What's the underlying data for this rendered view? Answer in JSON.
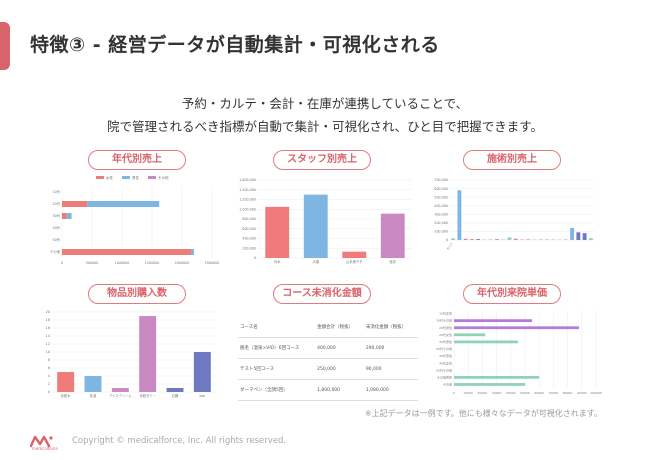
{
  "header": {
    "title": "特徴③ - 経営データが自動集計・可視化される"
  },
  "lead": {
    "line1": "予約・カルテ・会計・在庫が連携していることで、",
    "line2": "院で管理されるべき指標が自動で集計・可視化され、ひと目で把握できます。"
  },
  "colors": {
    "accent": "#d9636a",
    "pink": "#ef7b7b",
    "blue": "#7eb6e3",
    "purple": "#c98ac4",
    "indigo": "#6e79c2",
    "green": "#8fd3b6",
    "violet": "#b37cd6"
  },
  "panels": {
    "age_sales": {
      "label": "年代別売上"
    },
    "staff_sales": {
      "label": "スタッフ別売上"
    },
    "treatment_sales": {
      "label": "施術別売上"
    },
    "product_purchases": {
      "label": "物品別購入数"
    },
    "course_unconsumed": {
      "label": "コース未消化金額"
    },
    "age_unit_price": {
      "label": "年代別来院単価"
    }
  },
  "chart_data": [
    {
      "id": "age_sales",
      "type": "bar",
      "orientation": "horizontal",
      "stacked": true,
      "legend": [
        "女性",
        "男性",
        "その他"
      ],
      "legend_position": "top",
      "categories": [
        "10代",
        "20代",
        "30代",
        "40代",
        "50代",
        "その他"
      ],
      "series": [
        {
          "name": "女性",
          "values": [
            0,
            420000,
            80000,
            0,
            0,
            2150000
          ]
        },
        {
          "name": "男性",
          "values": [
            0,
            1200000,
            80000,
            0,
            0,
            50000
          ]
        },
        {
          "name": "その他",
          "values": [
            0,
            0,
            0,
            0,
            0,
            0
          ]
        }
      ],
      "x_ticks": [
        "0",
        "500000",
        "1000000",
        "1500000",
        "2000000",
        "2500000"
      ],
      "xlim": [
        0,
        2500000
      ],
      "grid": true
    },
    {
      "id": "staff_sales",
      "type": "bar",
      "categories": [
        "青木",
        "大橋",
        "山本美千子",
        "宮本"
      ],
      "values": [
        1050000,
        1300000,
        130000,
        910000
      ],
      "y_ticks": [
        "0",
        "200,000",
        "400,000",
        "600,000",
        "800,000",
        "1,000,000",
        "1,200,000",
        "1,400,000",
        "1,600,000"
      ],
      "ylim": [
        0,
        1600000
      ],
      "grid": true
    },
    {
      "id": "treatment_sales",
      "type": "bar",
      "categories": [
        "カット",
        "",
        "",
        "",
        "",
        "",
        "",
        "",
        "",
        "",
        "",
        "",
        "",
        "",
        "",
        "",
        "",
        "",
        "",
        "",
        "",
        "",
        ""
      ],
      "values": [
        20000,
        580000,
        15000,
        10000,
        10000,
        5000,
        5000,
        10000,
        5000,
        30000,
        15000,
        5000,
        5000,
        5000,
        5000,
        5000,
        5000,
        5000,
        5000,
        140000,
        90000,
        80000,
        20000
      ],
      "colors": [
        "#8fd3b6",
        "#7eb6e3",
        "#c98ac4",
        "#ef7b7b",
        "#6e79c2",
        "#8fd3b6",
        "#c98ac4",
        "#ef7b7b",
        "#7eb6e3",
        "#8fd3b6",
        "#c98ac4",
        "#ef7b7b",
        "#6e79c2",
        "#8fd3b6",
        "#c98ac4",
        "#ef7b7b",
        "#7eb6e3",
        "#8fd3b6",
        "#c98ac4",
        "#7eb6e3",
        "#6e79c2",
        "#6e79c2",
        "#8fd3b6"
      ],
      "y_ticks": [
        "0",
        "100,000",
        "200,000",
        "300,000",
        "400,000",
        "500,000",
        "600,000",
        "700,000"
      ],
      "ylim": [
        0,
        700000
      ],
      "grid": true
    },
    {
      "id": "product_purchases",
      "type": "bar",
      "categories": [
        "化粧水",
        "乳液",
        "アイスクリーム",
        "化粧ゼリー",
        "石鹸",
        "bwi"
      ],
      "values": [
        5,
        4,
        1,
        19,
        1,
        10
      ],
      "colors": [
        "#ef7b7b",
        "#7eb6e3",
        "#c98ac4",
        "#c98ac4",
        "#6e79c2",
        "#6e79c2"
      ],
      "y_ticks": [
        "0",
        "2",
        "4",
        "6",
        "8",
        "10",
        "12",
        "14",
        "16",
        "18",
        "20"
      ],
      "ylim": [
        0,
        20
      ],
      "grid": true
    },
    {
      "id": "course_unconsumed",
      "type": "table",
      "columns": [
        "コース名",
        "金額合計（税抜）",
        "未消化金額（税抜）"
      ],
      "rows": [
        [
          "脱毛（温泉×VIO）6回コース",
          "400,000",
          "290,000"
        ],
        [
          "テスト5回コース",
          "250,000",
          "90,000"
        ],
        [
          "ダーマペン（全顔5回）",
          "1,800,000",
          "1,080,000"
        ]
      ]
    },
    {
      "id": "age_unit_price",
      "type": "bar",
      "orientation": "horizontal",
      "categories": [
        "10代女性",
        "10代その他",
        "20代男性",
        "20代女性",
        "30代男性",
        "30代その他",
        "40代男性",
        "40代女性",
        "50代その他",
        "その他男性",
        "その他"
      ],
      "values": [
        0,
        55000,
        88000,
        22000,
        45000,
        0,
        0,
        0,
        0,
        60000,
        50000
      ],
      "colors": [
        "#b37cd6",
        "#b37cd6",
        "#b37cd6",
        "#8fd3b6",
        "#8fd3b6",
        "#8fd3b6",
        "#8fd3b6",
        "#8fd3b6",
        "#8fd3b6",
        "#8fd3b6",
        "#8fd3b6"
      ],
      "x_ticks": [
        "0",
        "10000",
        "20000",
        "30000",
        "40000",
        "50000",
        "60000",
        "70000",
        "80000",
        "90000",
        "100000"
      ],
      "xlim": [
        0,
        100000
      ],
      "grid": true
    }
  ],
  "note": "※上記データは一例です。他にも様々なデータが可視化されます。",
  "footer": {
    "logo_text": "medicalforce",
    "copyright": "Copyright © medicalforce, Inc. All rights reserved."
  }
}
